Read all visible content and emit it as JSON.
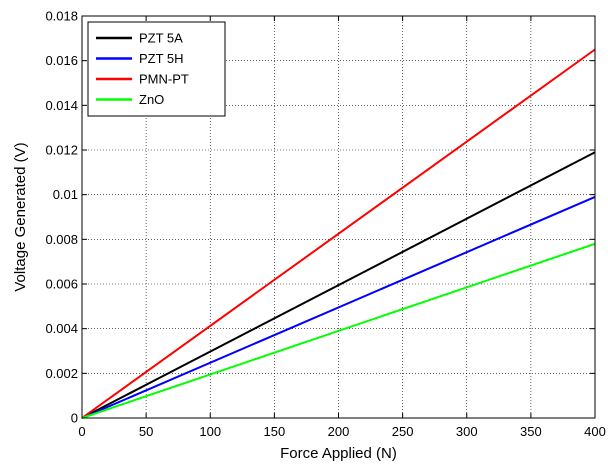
{
  "chart_data": {
    "type": "line",
    "xlabel": "Force Applied (N)",
    "ylabel": "Voltage Generated (V)",
    "xlim": [
      0,
      400
    ],
    "ylim": [
      0,
      0.018
    ],
    "xticks": [
      0,
      50,
      100,
      150,
      200,
      250,
      300,
      350,
      400
    ],
    "yticks": [
      0,
      0.002,
      0.004,
      0.006,
      0.008,
      0.01,
      0.012,
      0.014,
      0.016,
      0.018
    ],
    "xtick_labels": [
      "0",
      "50",
      "100",
      "150",
      "200",
      "250",
      "300",
      "350",
      "400"
    ],
    "ytick_labels": [
      "0",
      "0.002",
      "0.004",
      "0.006",
      "0.008",
      "0.01",
      "0.012",
      "0.014",
      "0.016",
      "0.018"
    ],
    "grid": true,
    "legend_position": "top-left",
    "x": [
      0,
      400
    ],
    "series": [
      {
        "name": "PZT 5A",
        "color": "#000000",
        "values": [
          0,
          0.0119
        ]
      },
      {
        "name": "PZT 5H",
        "color": "#0000ff",
        "values": [
          0,
          0.0099
        ]
      },
      {
        "name": "PMN-PT",
        "color": "#ff0000",
        "values": [
          0,
          0.0165
        ]
      },
      {
        "name": "ZnO",
        "color": "#00ff00",
        "values": [
          0,
          0.0078
        ]
      }
    ]
  }
}
